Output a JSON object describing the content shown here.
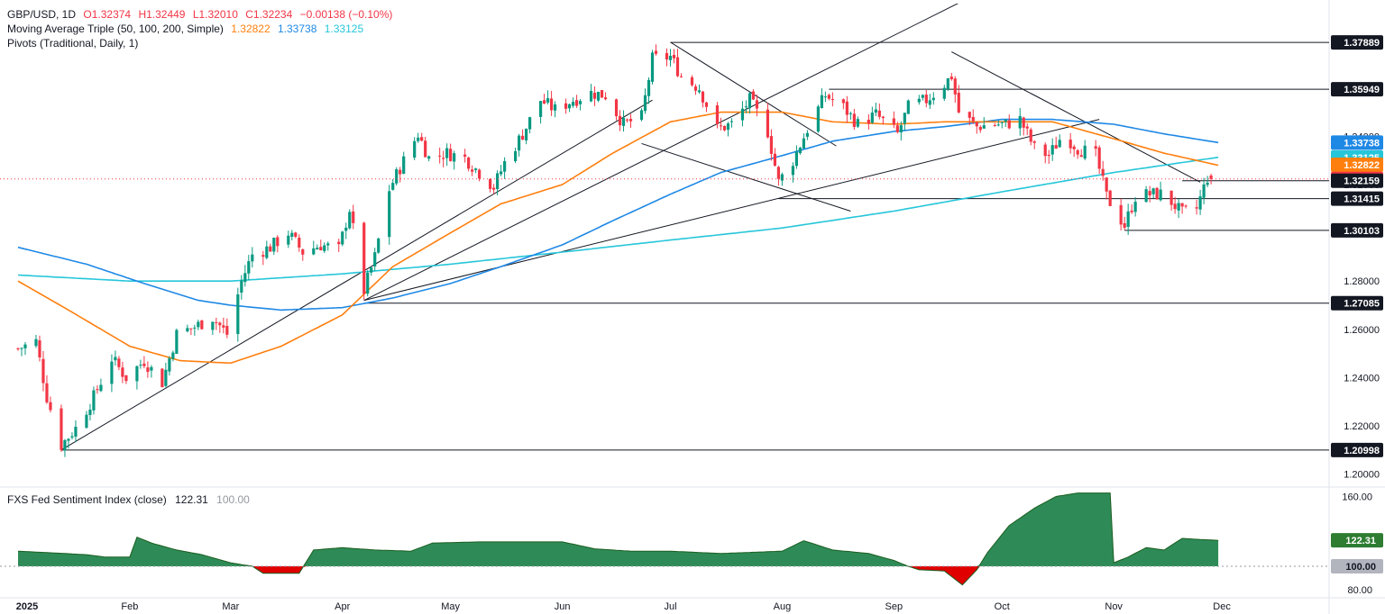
{
  "header": {
    "symbol": "GBP/USD, 1D",
    "open": "O1.32374",
    "high": "H1.32449",
    "low": "L1.32010",
    "close": "C1.32234",
    "change": "−0.00138 (−0.10%)",
    "ma_label": "Moving Average Triple (50, 100, 200, Simple)",
    "ma50": "1.32822",
    "ma100": "1.33738",
    "ma200": "1.33125",
    "pivots_label": "Pivots (Traditional, Daily, 1)"
  },
  "indicator": {
    "label": "FXS Fed Sentiment Index (close)",
    "value": "122.31",
    "baseline": "100.00"
  },
  "colors": {
    "up": "#089981",
    "down": "#f23645",
    "ma50": "#ff7f0e",
    "ma100": "#1e88e5",
    "ma200": "#26c6da",
    "area_positive": "#2e8b57",
    "area_negative": "#e00000"
  },
  "chart_data": [
    {
      "type": "candlestick",
      "ylim": [
        1.195,
        1.395
      ],
      "x_ticks": [
        "2025",
        "Feb",
        "Mar",
        "Apr",
        "May",
        "Jun",
        "Jul",
        "Aug",
        "Sep",
        "Oct",
        "Nov",
        "Dec"
      ],
      "y_ticks": [
        "1.20000",
        "1.22000",
        "1.24000",
        "1.26000",
        "1.28000",
        "1.30000",
        "1.32000",
        "1.34000",
        "1.36000",
        "1.38000"
      ],
      "badges": [
        {
          "label": "1.37889",
          "value": 1.37889
        },
        {
          "label": "1.35949",
          "value": 1.35949
        },
        {
          "label": "1.33738",
          "value": 1.33738
        },
        {
          "label": "1.33125",
          "value": 1.33125
        },
        {
          "label": "1.32822",
          "value": 1.32822
        },
        {
          "label": "1.32234",
          "value": 1.32234
        },
        {
          "label": "1.32159",
          "value": 1.32159
        },
        {
          "label": "1.31415",
          "value": 1.31415
        },
        {
          "label": "1.30103",
          "value": 1.30103
        },
        {
          "label": "1.27085",
          "value": 1.27085
        },
        {
          "label": "1.20998",
          "value": 1.20998
        }
      ],
      "close_path": [
        [
          "2025-01-01",
          1.252
        ],
        [
          "2025-01-06",
          1.255
        ],
        [
          "2025-01-09",
          1.232
        ],
        [
          "2025-01-13",
          1.212
        ],
        [
          "2025-01-17",
          1.219
        ],
        [
          "2025-01-22",
          1.232
        ],
        [
          "2025-01-27",
          1.248
        ],
        [
          "2025-01-31",
          1.24
        ],
        [
          "2025-02-05",
          1.247
        ],
        [
          "2025-02-10",
          1.238
        ],
        [
          "2025-02-14",
          1.258
        ],
        [
          "2025-02-19",
          1.261
        ],
        [
          "2025-02-24",
          1.265
        ],
        [
          "2025-02-28",
          1.258
        ],
        [
          "2025-03-04",
          1.28
        ],
        [
          "2025-03-07",
          1.291
        ],
        [
          "2025-03-12",
          1.294
        ],
        [
          "2025-03-17",
          1.3
        ],
        [
          "2025-03-21",
          1.292
        ],
        [
          "2025-03-26",
          1.295
        ],
        [
          "2025-03-31",
          1.293
        ],
        [
          "2025-04-03",
          1.31
        ],
        [
          "2025-04-07",
          1.276
        ],
        [
          "2025-04-10",
          1.29
        ],
        [
          "2025-04-14",
          1.318
        ],
        [
          "2025-04-17",
          1.327
        ],
        [
          "2025-04-22",
          1.341
        ],
        [
          "2025-04-25",
          1.331
        ],
        [
          "2025-04-30",
          1.333
        ],
        [
          "2025-05-05",
          1.331
        ],
        [
          "2025-05-09",
          1.325
        ],
        [
          "2025-05-13",
          1.319
        ],
        [
          "2025-05-16",
          1.329
        ],
        [
          "2025-05-21",
          1.341
        ],
        [
          "2025-05-26",
          1.355
        ],
        [
          "2025-05-30",
          1.351
        ],
        [
          "2025-06-04",
          1.355
        ],
        [
          "2025-06-09",
          1.358
        ],
        [
          "2025-06-13",
          1.357
        ],
        [
          "2025-06-18",
          1.345
        ],
        [
          "2025-06-23",
          1.348
        ],
        [
          "2025-06-26",
          1.372
        ],
        [
          "2025-07-01",
          1.373
        ],
        [
          "2025-07-04",
          1.365
        ],
        [
          "2025-07-09",
          1.36
        ],
        [
          "2025-07-14",
          1.343
        ],
        [
          "2025-07-18",
          1.345
        ],
        [
          "2025-07-23",
          1.355
        ],
        [
          "2025-07-28",
          1.342
        ],
        [
          "2025-07-31",
          1.321
        ],
        [
          "2025-08-04",
          1.33
        ],
        [
          "2025-08-08",
          1.343
        ],
        [
          "2025-08-13",
          1.357
        ],
        [
          "2025-08-18",
          1.352
        ],
        [
          "2025-08-22",
          1.345
        ],
        [
          "2025-08-27",
          1.349
        ],
        [
          "2025-09-02",
          1.341
        ],
        [
          "2025-09-05",
          1.352
        ],
        [
          "2025-09-10",
          1.355
        ],
        [
          "2025-09-14",
          1.36
        ],
        [
          "2025-09-17",
          1.365
        ],
        [
          "2025-09-19",
          1.35
        ],
        [
          "2025-09-24",
          1.344
        ],
        [
          "2025-09-28",
          1.345
        ],
        [
          "2025-10-02",
          1.345
        ],
        [
          "2025-10-06",
          1.347
        ],
        [
          "2025-10-10",
          1.335
        ],
        [
          "2025-10-14",
          1.332
        ],
        [
          "2025-10-18",
          1.341
        ],
        [
          "2025-10-22",
          1.335
        ],
        [
          "2025-10-27",
          1.332
        ],
        [
          "2025-10-30",
          1.315
        ],
        [
          "2025-11-04",
          1.303
        ],
        [
          "2025-11-07",
          1.315
        ],
        [
          "2025-11-11",
          1.316
        ],
        [
          "2025-11-15",
          1.316
        ],
        [
          "2025-11-20",
          1.308
        ],
        [
          "2025-11-24",
          1.31
        ],
        [
          "2025-11-27",
          1.323
        ],
        [
          "2025-11-30",
          1.3223
        ]
      ],
      "ma50_path": [
        [
          "2025-01-01",
          1.28
        ],
        [
          "2025-01-15",
          1.268
        ],
        [
          "2025-02-01",
          1.253
        ],
        [
          "2025-02-15",
          1.247
        ],
        [
          "2025-03-01",
          1.246
        ],
        [
          "2025-03-15",
          1.253
        ],
        [
          "2025-04-01",
          1.266
        ],
        [
          "2025-04-15",
          1.286
        ],
        [
          "2025-05-01",
          1.3
        ],
        [
          "2025-05-15",
          1.312
        ],
        [
          "2025-06-01",
          1.32
        ],
        [
          "2025-06-15",
          1.333
        ],
        [
          "2025-07-01",
          1.346
        ],
        [
          "2025-07-15",
          1.35
        ],
        [
          "2025-08-01",
          1.35
        ],
        [
          "2025-08-15",
          1.346
        ],
        [
          "2025-09-01",
          1.345
        ],
        [
          "2025-09-15",
          1.346
        ],
        [
          "2025-10-01",
          1.346
        ],
        [
          "2025-10-15",
          1.346
        ],
        [
          "2025-11-01",
          1.339
        ],
        [
          "2025-11-15",
          1.333
        ],
        [
          "2025-11-30",
          1.328
        ]
      ],
      "ma100_path": [
        [
          "2025-01-01",
          1.294
        ],
        [
          "2025-01-20",
          1.287
        ],
        [
          "2025-02-05",
          1.279
        ],
        [
          "2025-02-20",
          1.272
        ],
        [
          "2025-03-01",
          1.27
        ],
        [
          "2025-03-15",
          1.268
        ],
        [
          "2025-04-01",
          1.269
        ],
        [
          "2025-04-15",
          1.273
        ],
        [
          "2025-05-01",
          1.279
        ],
        [
          "2025-05-15",
          1.286
        ],
        [
          "2025-06-01",
          1.295
        ],
        [
          "2025-06-15",
          1.305
        ],
        [
          "2025-07-01",
          1.316
        ],
        [
          "2025-07-15",
          1.325
        ],
        [
          "2025-08-01",
          1.332
        ],
        [
          "2025-08-15",
          1.338
        ],
        [
          "2025-09-01",
          1.342
        ],
        [
          "2025-09-15",
          1.344
        ],
        [
          "2025-10-01",
          1.347
        ],
        [
          "2025-10-15",
          1.347
        ],
        [
          "2025-11-01",
          1.345
        ],
        [
          "2025-11-15",
          1.341
        ],
        [
          "2025-11-30",
          1.3374
        ]
      ],
      "ma200_path": [
        [
          "2025-01-01",
          1.2825
        ],
        [
          "2025-02-01",
          1.28
        ],
        [
          "2025-03-01",
          1.28
        ],
        [
          "2025-04-01",
          1.283
        ],
        [
          "2025-05-01",
          1.287
        ],
        [
          "2025-06-01",
          1.292
        ],
        [
          "2025-07-01",
          1.297
        ],
        [
          "2025-08-01",
          1.302
        ],
        [
          "2025-09-01",
          1.309
        ],
        [
          "2025-10-01",
          1.317
        ],
        [
          "2025-11-01",
          1.325
        ],
        [
          "2025-11-30",
          1.3313
        ]
      ],
      "trend_lines": [
        {
          "from": [
            "2025-01-13",
            1.21
          ],
          "to": [
            "2025-06-26",
            1.355
          ]
        },
        {
          "from": [
            "2025-04-07",
            1.272
          ],
          "to": [
            "2025-09-20",
            1.396
          ]
        },
        {
          "from": [
            "2025-04-07",
            1.272
          ],
          "to": [
            "2025-10-28",
            1.347
          ]
        },
        {
          "from": [
            "2025-07-01",
            1.379
          ],
          "to": [
            "2025-08-16",
            1.336
          ]
        },
        {
          "from": [
            "2025-06-23",
            1.337
          ],
          "to": [
            "2025-08-20",
            1.309
          ]
        },
        {
          "from": [
            "2025-09-17",
            1.375
          ],
          "to": [
            "2025-11-25",
            1.321
          ]
        }
      ],
      "pivot_lines": [
        {
          "from": "2025-07-01",
          "to": "2025-12-31",
          "value": 1.37889
        },
        {
          "from": "2025-08-14",
          "to": "2025-12-31",
          "value": 1.35949
        },
        {
          "from": "2025-11-20",
          "to": "2025-12-31",
          "value": 1.32159
        },
        {
          "from": "2025-07-31",
          "to": "2025-12-31",
          "value": 1.31415
        },
        {
          "from": "2025-11-04",
          "to": "2025-12-31",
          "value": 1.30103
        },
        {
          "from": "2025-04-07",
          "to": "2025-12-31",
          "value": 1.27085
        },
        {
          "from": "2025-01-13",
          "to": "2025-12-31",
          "value": 1.20998
        }
      ]
    },
    {
      "type": "area",
      "ylim": [
        76,
        165
      ],
      "baseline": 100,
      "y_ticks": [
        "80.00",
        "160.00"
      ],
      "badges": [
        {
          "label": "122.31",
          "value": 122.31
        },
        {
          "label": "100.00",
          "value": 100
        }
      ],
      "path": [
        [
          "2025-01-01",
          113
        ],
        [
          "2025-01-20",
          110
        ],
        [
          "2025-01-25",
          108
        ],
        [
          "2025-02-01",
          108
        ],
        [
          "2025-02-03",
          125
        ],
        [
          "2025-02-07",
          120
        ],
        [
          "2025-02-14",
          114
        ],
        [
          "2025-02-21",
          110
        ],
        [
          "2025-03-01",
          103
        ],
        [
          "2025-03-07",
          100
        ],
        [
          "2025-03-10",
          94
        ],
        [
          "2025-03-20",
          94
        ],
        [
          "2025-03-24",
          114
        ],
        [
          "2025-04-01",
          116
        ],
        [
          "2025-04-10",
          114
        ],
        [
          "2025-04-20",
          113
        ],
        [
          "2025-04-26",
          120
        ],
        [
          "2025-05-10",
          121
        ],
        [
          "2025-06-01",
          121
        ],
        [
          "2025-06-10",
          115
        ],
        [
          "2025-06-20",
          113
        ],
        [
          "2025-07-01",
          113
        ],
        [
          "2025-07-15",
          111
        ],
        [
          "2025-08-01",
          113
        ],
        [
          "2025-08-07",
          122
        ],
        [
          "2025-08-15",
          114
        ],
        [
          "2025-08-25",
          111
        ],
        [
          "2025-09-01",
          105
        ],
        [
          "2025-09-05",
          100
        ],
        [
          "2025-09-08",
          97
        ],
        [
          "2025-09-15",
          96
        ],
        [
          "2025-09-20",
          84
        ],
        [
          "2025-09-24",
          97
        ],
        [
          "2025-09-27",
          112
        ],
        [
          "2025-10-03",
          135
        ],
        [
          "2025-10-10",
          150
        ],
        [
          "2025-10-16",
          160
        ],
        [
          "2025-10-22",
          163
        ],
        [
          "2025-10-29",
          163
        ],
        [
          "2025-10-31",
          163
        ],
        [
          "2025-11-01",
          103
        ],
        [
          "2025-11-05",
          108
        ],
        [
          "2025-11-10",
          116
        ],
        [
          "2025-11-15",
          114
        ],
        [
          "2025-11-20",
          124
        ],
        [
          "2025-11-25",
          123
        ],
        [
          "2025-11-30",
          122.31
        ]
      ]
    }
  ]
}
